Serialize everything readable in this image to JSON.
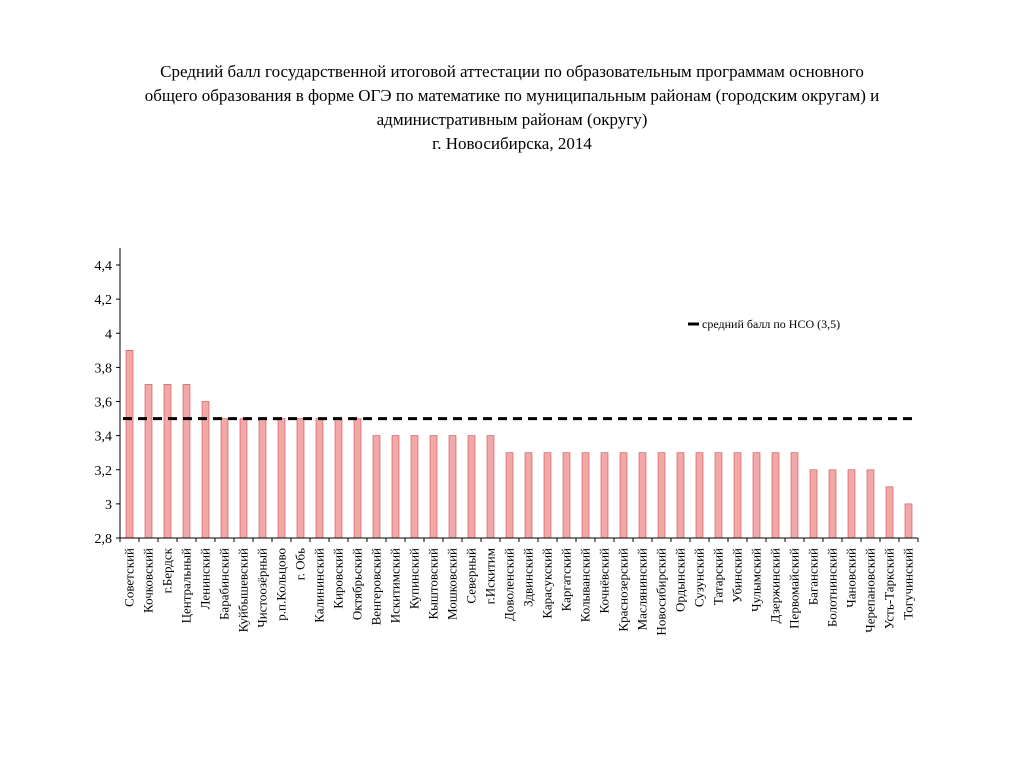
{
  "title_lines": [
    "Средний балл государственной итоговой аттестации по образовательным программам основного",
    "общего образования в форме ОГЭ по математике по муниципальным районам (городским округам) и",
    "административным районам (округу)",
    "г. Новосибирска, 2014"
  ],
  "colors": {
    "bar_fill": "#f4a7a7",
    "bar_stroke": "#c0504d",
    "reference_line": "#000000",
    "axis": "#000000"
  },
  "chart_data": {
    "type": "bar",
    "title": "Средний балл государственной итоговой аттестации по образовательным программам основного общего образования в форме ОГЭ по математике по муниципальным районам (городским округам) и административным районам (округу) г. Новосибирска, 2014",
    "xlabel": "",
    "ylabel": "",
    "ylim": [
      2.8,
      4.4
    ],
    "yticks": [
      2.8,
      3,
      3.2,
      3.4,
      3.6,
      3.8,
      4,
      4.2,
      4.4
    ],
    "ytick_labels": [
      "2,8",
      "3",
      "3,2",
      "3,4",
      "3,6",
      "3,8",
      "4",
      "4,2",
      "4,4"
    ],
    "grid": false,
    "legend_position": "top-right",
    "categories": [
      "Советский",
      "Кочковский",
      "г.Бердск",
      "Центральный",
      "Ленинский",
      "Барабинский",
      "Куйбышевский",
      "Чистоозёрный",
      "р.п.Кольцово",
      "г. Обь",
      "Калининский",
      "Кировский",
      "Октябрьский",
      "Венгеровский",
      "Искитимский",
      "Купинский",
      "Кыштовский",
      "Мошковский",
      "Северный",
      "г.Искитим",
      "Доволенский",
      "Здвинский",
      "Карасукский",
      "Каргатский",
      "Колыванский",
      "Кочнёвский",
      "Краснозерский",
      "Маслянинский",
      "Новосибирский",
      "Ордынский",
      "Сузунский",
      "Татарский",
      "Убинский",
      "Чулымский",
      "Дзержинский",
      "Первомайский",
      "Баганский",
      "Болотнинский",
      "Чановский",
      "Черепановский",
      "Усть-Таркский",
      "Тогучинский"
    ],
    "series": [
      {
        "values": [
          3.9,
          3.7,
          3.7,
          3.7,
          3.6,
          3.5,
          3.5,
          3.5,
          3.5,
          3.5,
          3.5,
          3.5,
          3.5,
          3.4,
          3.4,
          3.4,
          3.4,
          3.4,
          3.4,
          3.4,
          3.3,
          3.3,
          3.3,
          3.3,
          3.3,
          3.3,
          3.3,
          3.3,
          3.3,
          3.3,
          3.3,
          3.3,
          3.3,
          3.3,
          3.3,
          3.3,
          3.2,
          3.2,
          3.2,
          3.2,
          3.1,
          3.0
        ]
      }
    ],
    "reference_line": {
      "name": "средний балл по НСО (3,5)",
      "value": 3.5,
      "style": "dashed"
    }
  }
}
